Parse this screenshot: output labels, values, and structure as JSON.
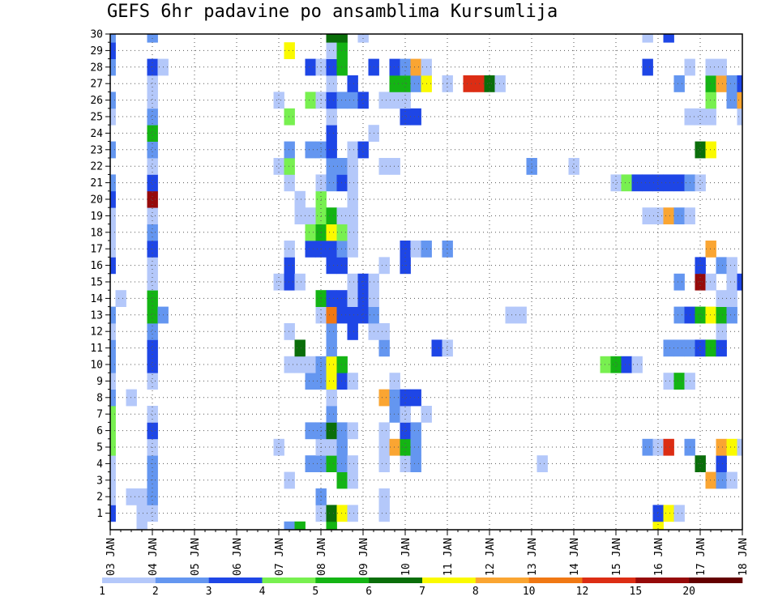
{
  "chart_data": {
    "type": "heatmap",
    "title": "GEFS 6hr padavine po ansamblima Kursumlija",
    "x_tick_labels": [
      "03 JAN",
      "04 JAN",
      "05 JAN",
      "06 JAN",
      "07 JAN",
      "08 JAN",
      "09 JAN",
      "10 JAN",
      "11 JAN",
      "12 JAN",
      "13 JAN",
      "14 JAN",
      "15 JAN",
      "16 JAN",
      "17 JAN",
      "18 JAN"
    ],
    "y_tick_labels": [
      "1",
      "2",
      "3",
      "4",
      "5",
      "6",
      "7",
      "8",
      "9",
      "10",
      "11",
      "12",
      "13",
      "14",
      "15",
      "16",
      "17",
      "18",
      "19",
      "20",
      "21",
      "22",
      "23",
      "24",
      "25",
      "26",
      "27",
      "28",
      "29",
      "30"
    ],
    "y_range": [
      0,
      30
    ],
    "steps_per_day": 4,
    "num_steps": 60,
    "grid": "dotted",
    "legend_position": "bottom",
    "legend_labels": [
      "1",
      "2",
      "3",
      "4",
      "5",
      "6",
      "7",
      "8",
      "10",
      "12",
      "15",
      "20"
    ],
    "colors": [
      "#ffffff",
      "#b4c8fa",
      "#6496f0",
      "#1e46e6",
      "#78f050",
      "#14b414",
      "#0a6e0a",
      "#fafa00",
      "#faa532",
      "#f07814",
      "#dc2d14",
      "#960a0a",
      "#640000"
    ],
    "legend_colors": [
      "#b4c8fa",
      "#6496f0",
      "#1e46e6",
      "#78f050",
      "#14b414",
      "#0a6e0a",
      "#fafa00",
      "#faa532",
      "#f07814",
      "#dc2d14",
      "#960a0a",
      "#640000"
    ],
    "cells": [
      [
        0,
        1,
        3
      ],
      [
        0,
        2,
        1
      ],
      [
        0,
        3,
        1
      ],
      [
        0,
        4,
        1
      ],
      [
        0,
        5,
        4
      ],
      [
        0,
        6,
        4
      ],
      [
        0,
        7,
        4
      ],
      [
        0,
        8,
        2
      ],
      [
        0,
        9,
        1
      ],
      [
        0,
        10,
        2
      ],
      [
        0,
        11,
        2
      ],
      [
        0,
        12,
        1
      ],
      [
        0,
        13,
        2
      ],
      [
        0,
        16,
        3
      ],
      [
        0,
        17,
        1
      ],
      [
        0,
        18,
        1
      ],
      [
        0,
        19,
        1
      ],
      [
        0,
        20,
        3
      ],
      [
        0,
        21,
        2
      ],
      [
        0,
        23,
        2
      ],
      [
        0,
        25,
        1
      ],
      [
        0,
        26,
        2
      ],
      [
        0,
        28,
        2
      ],
      [
        0,
        29,
        3
      ],
      [
        0,
        30,
        2
      ],
      [
        1,
        14,
        1
      ],
      [
        2,
        2,
        1
      ],
      [
        2,
        8,
        1
      ],
      [
        3,
        1,
        1
      ],
      [
        3,
        2,
        1
      ],
      [
        3,
        0,
        1
      ],
      [
        4,
        1,
        1
      ],
      [
        4,
        2,
        2
      ],
      [
        4,
        3,
        2
      ],
      [
        4,
        4,
        2
      ],
      [
        4,
        5,
        1
      ],
      [
        4,
        6,
        3
      ],
      [
        4,
        7,
        1
      ],
      [
        4,
        9,
        1
      ],
      [
        4,
        10,
        3
      ],
      [
        4,
        11,
        3
      ],
      [
        4,
        12,
        2
      ],
      [
        4,
        13,
        5
      ],
      [
        4,
        14,
        5
      ],
      [
        4,
        15,
        1
      ],
      [
        4,
        16,
        1
      ],
      [
        4,
        17,
        3
      ],
      [
        4,
        18,
        2
      ],
      [
        4,
        19,
        1
      ],
      [
        4,
        20,
        11
      ],
      [
        4,
        21,
        3
      ],
      [
        4,
        22,
        1
      ],
      [
        4,
        23,
        2
      ],
      [
        4,
        24,
        5
      ],
      [
        4,
        25,
        2
      ],
      [
        4,
        26,
        1
      ],
      [
        4,
        27,
        1
      ],
      [
        4,
        28,
        3
      ],
      [
        4,
        30,
        2
      ],
      [
        5,
        13,
        2
      ],
      [
        5,
        28,
        1
      ],
      [
        16,
        22,
        1
      ],
      [
        16,
        26,
        1
      ],
      [
        16,
        15,
        1
      ],
      [
        16,
        5,
        1
      ],
      [
        17,
        0,
        2
      ],
      [
        17,
        3,
        1
      ],
      [
        17,
        10,
        1
      ],
      [
        17,
        12,
        1
      ],
      [
        17,
        15,
        3
      ],
      [
        17,
        16,
        3
      ],
      [
        17,
        17,
        1
      ],
      [
        17,
        21,
        1
      ],
      [
        17,
        22,
        4
      ],
      [
        17,
        23,
        2
      ],
      [
        17,
        25,
        4
      ],
      [
        17,
        29,
        7
      ],
      [
        18,
        0,
        5
      ],
      [
        18,
        10,
        1
      ],
      [
        18,
        11,
        6
      ],
      [
        18,
        15,
        1
      ],
      [
        18,
        19,
        1
      ],
      [
        18,
        20,
        1
      ],
      [
        19,
        4,
        2
      ],
      [
        19,
        6,
        2
      ],
      [
        19,
        9,
        2
      ],
      [
        19,
        10,
        1
      ],
      [
        19,
        17,
        3
      ],
      [
        19,
        18,
        4
      ],
      [
        19,
        19,
        1
      ],
      [
        19,
        23,
        2
      ],
      [
        19,
        26,
        4
      ],
      [
        19,
        28,
        3
      ],
      [
        20,
        1,
        1
      ],
      [
        20,
        2,
        2
      ],
      [
        20,
        4,
        2
      ],
      [
        20,
        5,
        1
      ],
      [
        20,
        6,
        2
      ],
      [
        20,
        9,
        2
      ],
      [
        20,
        10,
        2
      ],
      [
        20,
        13,
        1
      ],
      [
        20,
        14,
        5
      ],
      [
        20,
        17,
        3
      ],
      [
        20,
        18,
        5
      ],
      [
        20,
        19,
        4
      ],
      [
        20,
        20,
        4
      ],
      [
        20,
        21,
        1
      ],
      [
        20,
        23,
        2
      ],
      [
        20,
        26,
        1
      ],
      [
        20,
        28,
        1
      ],
      [
        21,
        0,
        5
      ],
      [
        21,
        1,
        6
      ],
      [
        21,
        4,
        5
      ],
      [
        21,
        5,
        1
      ],
      [
        21,
        6,
        6
      ],
      [
        21,
        7,
        2
      ],
      [
        21,
        8,
        1
      ],
      [
        21,
        9,
        7
      ],
      [
        21,
        10,
        7
      ],
      [
        21,
        11,
        2
      ],
      [
        21,
        12,
        2
      ],
      [
        21,
        13,
        9
      ],
      [
        21,
        14,
        3
      ],
      [
        21,
        16,
        3
      ],
      [
        21,
        17,
        3
      ],
      [
        21,
        18,
        7
      ],
      [
        21,
        19,
        5
      ],
      [
        21,
        21,
        2
      ],
      [
        21,
        22,
        2
      ],
      [
        21,
        23,
        3
      ],
      [
        21,
        24,
        3
      ],
      [
        21,
        25,
        1
      ],
      [
        21,
        26,
        3
      ],
      [
        21,
        27,
        1
      ],
      [
        21,
        28,
        3
      ],
      [
        21,
        29,
        1
      ],
      [
        21,
        30,
        6
      ],
      [
        22,
        1,
        7
      ],
      [
        22,
        3,
        5
      ],
      [
        22,
        4,
        2
      ],
      [
        22,
        5,
        2
      ],
      [
        22,
        6,
        2
      ],
      [
        22,
        9,
        3
      ],
      [
        22,
        10,
        5
      ],
      [
        22,
        13,
        3
      ],
      [
        22,
        14,
        3
      ],
      [
        22,
        16,
        3
      ],
      [
        22,
        17,
        2
      ],
      [
        22,
        18,
        4
      ],
      [
        22,
        19,
        1
      ],
      [
        22,
        21,
        3
      ],
      [
        22,
        22,
        2
      ],
      [
        22,
        26,
        2
      ],
      [
        22,
        28,
        5
      ],
      [
        22,
        29,
        5
      ],
      [
        22,
        30,
        6
      ],
      [
        23,
        1,
        1
      ],
      [
        23,
        3,
        1
      ],
      [
        23,
        4,
        1
      ],
      [
        23,
        6,
        1
      ],
      [
        23,
        9,
        1
      ],
      [
        23,
        12,
        3
      ],
      [
        23,
        13,
        3
      ],
      [
        23,
        14,
        1
      ],
      [
        23,
        15,
        1
      ],
      [
        23,
        17,
        1
      ],
      [
        23,
        18,
        1
      ],
      [
        23,
        19,
        1
      ],
      [
        23,
        20,
        1
      ],
      [
        23,
        21,
        1
      ],
      [
        23,
        22,
        1
      ],
      [
        23,
        23,
        1
      ],
      [
        23,
        26,
        2
      ],
      [
        23,
        27,
        3
      ],
      [
        24,
        13,
        3
      ],
      [
        24,
        14,
        3
      ],
      [
        24,
        15,
        3
      ],
      [
        24,
        23,
        3
      ],
      [
        24,
        26,
        3
      ],
      [
        24,
        30,
        1
      ],
      [
        25,
        12,
        1
      ],
      [
        25,
        13,
        2
      ],
      [
        25,
        14,
        1
      ],
      [
        25,
        15,
        1
      ],
      [
        25,
        24,
        1
      ],
      [
        25,
        28,
        3
      ],
      [
        26,
        1,
        1
      ],
      [
        26,
        2,
        1
      ],
      [
        26,
        4,
        1
      ],
      [
        26,
        5,
        1
      ],
      [
        26,
        6,
        1
      ],
      [
        26,
        8,
        8
      ],
      [
        26,
        11,
        2
      ],
      [
        26,
        12,
        1
      ],
      [
        26,
        16,
        1
      ],
      [
        26,
        22,
        1
      ],
      [
        26,
        26,
        1
      ],
      [
        27,
        5,
        8
      ],
      [
        27,
        7,
        2
      ],
      [
        27,
        8,
        2
      ],
      [
        27,
        9,
        1
      ],
      [
        27,
        22,
        1
      ],
      [
        27,
        26,
        1
      ],
      [
        27,
        27,
        5
      ],
      [
        27,
        28,
        3
      ],
      [
        28,
        4,
        1
      ],
      [
        28,
        5,
        5
      ],
      [
        28,
        6,
        3
      ],
      [
        28,
        7,
        1
      ],
      [
        28,
        8,
        3
      ],
      [
        28,
        16,
        3
      ],
      [
        28,
        17,
        3
      ],
      [
        28,
        25,
        3
      ],
      [
        28,
        26,
        1
      ],
      [
        28,
        27,
        5
      ],
      [
        28,
        28,
        2
      ],
      [
        29,
        4,
        2
      ],
      [
        29,
        5,
        2
      ],
      [
        29,
        6,
        2
      ],
      [
        29,
        8,
        3
      ],
      [
        29,
        17,
        1
      ],
      [
        29,
        25,
        3
      ],
      [
        29,
        27,
        2
      ],
      [
        29,
        28,
        8
      ],
      [
        30,
        7,
        1
      ],
      [
        30,
        17,
        2
      ],
      [
        30,
        27,
        7
      ],
      [
        30,
        28,
        1
      ],
      [
        31,
        11,
        3
      ],
      [
        32,
        11,
        1
      ],
      [
        32,
        17,
        2
      ],
      [
        32,
        27,
        1
      ],
      [
        34,
        27,
        10
      ],
      [
        35,
        27,
        10
      ],
      [
        36,
        27,
        6
      ],
      [
        37,
        27,
        1
      ],
      [
        38,
        13,
        1
      ],
      [
        39,
        13,
        1
      ],
      [
        40,
        22,
        2
      ],
      [
        41,
        4,
        1
      ],
      [
        44,
        22,
        1
      ],
      [
        47,
        10,
        4
      ],
      [
        48,
        10,
        5
      ],
      [
        48,
        21,
        1
      ],
      [
        49,
        10,
        3
      ],
      [
        49,
        21,
        4
      ],
      [
        50,
        10,
        1
      ],
      [
        50,
        21,
        3
      ],
      [
        51,
        5,
        2
      ],
      [
        51,
        21,
        3
      ],
      [
        51,
        19,
        1
      ],
      [
        51,
        28,
        3
      ],
      [
        51,
        30,
        1
      ],
      [
        52,
        0,
        7
      ],
      [
        52,
        1,
        3
      ],
      [
        52,
        5,
        1
      ],
      [
        52,
        21,
        3
      ],
      [
        52,
        19,
        1
      ],
      [
        53,
        1,
        7
      ],
      [
        53,
        5,
        10
      ],
      [
        53,
        9,
        1
      ],
      [
        53,
        11,
        2
      ],
      [
        53,
        19,
        8
      ],
      [
        53,
        21,
        3
      ],
      [
        53,
        30,
        3
      ],
      [
        54,
        1,
        1
      ],
      [
        54,
        9,
        5
      ],
      [
        54,
        11,
        2
      ],
      [
        54,
        13,
        2
      ],
      [
        54,
        15,
        2
      ],
      [
        54,
        19,
        2
      ],
      [
        54,
        21,
        3
      ],
      [
        54,
        27,
        2
      ],
      [
        55,
        5,
        2
      ],
      [
        55,
        9,
        1
      ],
      [
        55,
        11,
        2
      ],
      [
        55,
        13,
        3
      ],
      [
        55,
        19,
        1
      ],
      [
        55,
        21,
        2
      ],
      [
        55,
        25,
        1
      ],
      [
        55,
        28,
        1
      ],
      [
        56,
        4,
        6
      ],
      [
        56,
        11,
        3
      ],
      [
        56,
        13,
        5
      ],
      [
        56,
        15,
        11
      ],
      [
        56,
        16,
        3
      ],
      [
        56,
        21,
        1
      ],
      [
        56,
        23,
        6
      ],
      [
        56,
        25,
        1
      ],
      [
        57,
        3,
        8
      ],
      [
        57,
        11,
        5
      ],
      [
        57,
        13,
        7
      ],
      [
        57,
        15,
        1
      ],
      [
        57,
        17,
        8
      ],
      [
        57,
        23,
        7
      ],
      [
        57,
        25,
        1
      ],
      [
        57,
        26,
        4
      ],
      [
        57,
        27,
        5
      ],
      [
        57,
        28,
        1
      ],
      [
        58,
        3,
        2
      ],
      [
        58,
        4,
        3
      ],
      [
        58,
        5,
        8
      ],
      [
        58,
        11,
        3
      ],
      [
        58,
        12,
        1
      ],
      [
        58,
        13,
        5
      ],
      [
        58,
        14,
        1
      ],
      [
        58,
        16,
        2
      ],
      [
        58,
        27,
        8
      ],
      [
        58,
        28,
        1
      ],
      [
        59,
        3,
        1
      ],
      [
        59,
        5,
        7
      ],
      [
        59,
        13,
        2
      ],
      [
        59,
        14,
        1
      ],
      [
        59,
        15,
        1
      ],
      [
        59,
        16,
        1
      ],
      [
        59,
        26,
        2
      ],
      [
        59,
        27,
        2
      ],
      [
        60,
        5,
        1
      ],
      [
        60,
        15,
        3
      ],
      [
        60,
        25,
        1
      ],
      [
        60,
        26,
        8
      ],
      [
        60,
        27,
        3
      ]
    ]
  }
}
